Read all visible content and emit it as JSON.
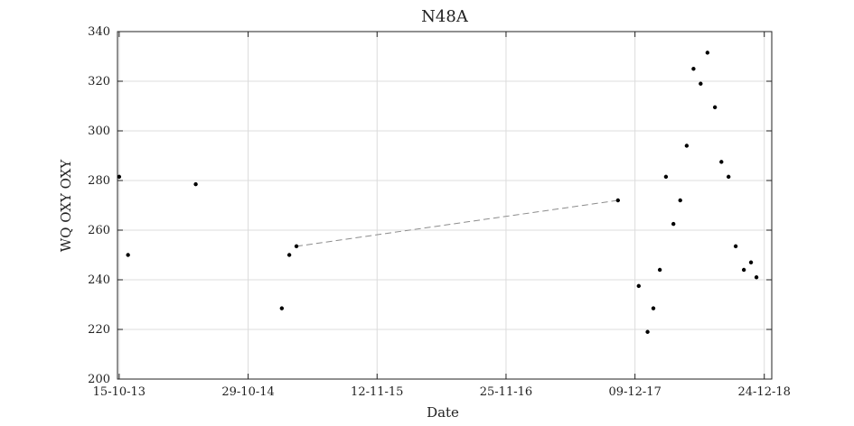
{
  "chart_data": {
    "type": "scatter",
    "title": "N48A",
    "xlabel": "Date",
    "ylabel": "WQ OXY OXY",
    "ylim": [
      200,
      340
    ],
    "yticks": [
      200,
      220,
      240,
      260,
      280,
      300,
      320,
      340
    ],
    "xlim": [
      "2013-10-10",
      "2019-01-15"
    ],
    "xticks": [
      {
        "date": "2013-10-15",
        "label": "15-10-13"
      },
      {
        "date": "2014-10-29",
        "label": "29-10-14"
      },
      {
        "date": "2015-11-12",
        "label": "12-11-15"
      },
      {
        "date": "2016-11-25",
        "label": "25-11-16"
      },
      {
        "date": "2017-12-09",
        "label": "09-12-17"
      },
      {
        "date": "2018-12-24",
        "label": "24-12-18"
      }
    ],
    "grid": true,
    "points": [
      {
        "x": "2013-10-15",
        "y": 281.5
      },
      {
        "x": "2013-11-10",
        "y": 250
      },
      {
        "x": "2014-05-28",
        "y": 278.5
      },
      {
        "x": "2015-02-05",
        "y": 228.5
      },
      {
        "x": "2015-02-27",
        "y": 250
      },
      {
        "x": "2015-03-20",
        "y": 253.5
      },
      {
        "x": "2017-10-20",
        "y": 272
      },
      {
        "x": "2017-12-20",
        "y": 237.5
      },
      {
        "x": "2018-01-15",
        "y": 219
      },
      {
        "x": "2018-02-01",
        "y": 228.5
      },
      {
        "x": "2018-02-20",
        "y": 244
      },
      {
        "x": "2018-03-10",
        "y": 281.5
      },
      {
        "x": "2018-04-01",
        "y": 262.5
      },
      {
        "x": "2018-04-21",
        "y": 272
      },
      {
        "x": "2018-05-10",
        "y": 294
      },
      {
        "x": "2018-05-30",
        "y": 325
      },
      {
        "x": "2018-06-20",
        "y": 319
      },
      {
        "x": "2018-07-10",
        "y": 331.5
      },
      {
        "x": "2018-08-01",
        "y": 309.5
      },
      {
        "x": "2018-08-20",
        "y": 287.5
      },
      {
        "x": "2018-09-10",
        "y": 281.5
      },
      {
        "x": "2018-10-01",
        "y": 253.5
      },
      {
        "x": "2018-10-25",
        "y": 244
      },
      {
        "x": "2018-11-15",
        "y": 247
      },
      {
        "x": "2018-12-01",
        "y": 241
      }
    ],
    "dashed_segment": [
      {
        "x": "2015-03-20",
        "y": 253.5
      },
      {
        "x": "2017-10-20",
        "y": 272
      }
    ],
    "colors": {
      "points": "#000000",
      "dashed": "#8c8c8c",
      "grid": "#dcdcdc"
    }
  }
}
